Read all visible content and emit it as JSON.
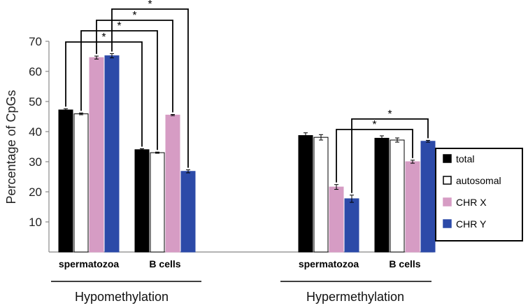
{
  "chart_data": {
    "type": "bar",
    "ylabel": "Percentage of CpGs",
    "ylim": [
      0,
      70
    ],
    "yticks": [
      10,
      20,
      30,
      40,
      50,
      60,
      70
    ],
    "grid": false,
    "legend_position": "right",
    "series": [
      {
        "name": "total",
        "color": "#000000",
        "fill": "#000000"
      },
      {
        "name": "autosomal",
        "color": "#000000",
        "fill": "#ffffff"
      },
      {
        "name": "CHR X",
        "color": "#d69cc4",
        "fill": "#d69cc4"
      },
      {
        "name": "CHR Y",
        "color": "#2c4aa8",
        "fill": "#2c4aa8"
      }
    ],
    "groups": [
      {
        "label": "Hypomethylation",
        "categories": [
          {
            "label": "spermatozoa",
            "values": [
              47.2,
              45.9,
              64.6,
              65.2
            ],
            "errors": [
              0.4,
              0.3,
              0.5,
              0.7
            ]
          },
          {
            "label": "B cells",
            "values": [
              34.0,
              33.0,
              45.5,
              26.8
            ],
            "errors": [
              0.3,
              0.2,
              0.2,
              0.5
            ]
          }
        ]
      },
      {
        "label": "Hypermethylation",
        "categories": [
          {
            "label": "spermatozoa",
            "values": [
              38.7,
              38.1,
              21.6,
              17.7
            ],
            "errors": [
              0.9,
              0.9,
              0.8,
              1.2
            ]
          },
          {
            "label": "B cells",
            "values": [
              37.8,
              37.2,
              30.0,
              36.8
            ],
            "errors": [
              0.8,
              0.7,
              0.5,
              0.3
            ]
          }
        ]
      }
    ],
    "significance": [
      {
        "group": 0,
        "from": [
          0,
          0
        ],
        "to": [
          1,
          0
        ],
        "label": "*"
      },
      {
        "group": 0,
        "from": [
          0,
          1
        ],
        "to": [
          1,
          1
        ],
        "label": "*"
      },
      {
        "group": 0,
        "from": [
          0,
          2
        ],
        "to": [
          1,
          2
        ],
        "label": "*"
      },
      {
        "group": 0,
        "from": [
          0,
          3
        ],
        "to": [
          1,
          3
        ],
        "label": "*"
      },
      {
        "group": 1,
        "from": [
          0,
          2
        ],
        "to": [
          1,
          2
        ],
        "label": "*"
      },
      {
        "group": 1,
        "from": [
          0,
          3
        ],
        "to": [
          1,
          3
        ],
        "label": "*"
      }
    ]
  }
}
